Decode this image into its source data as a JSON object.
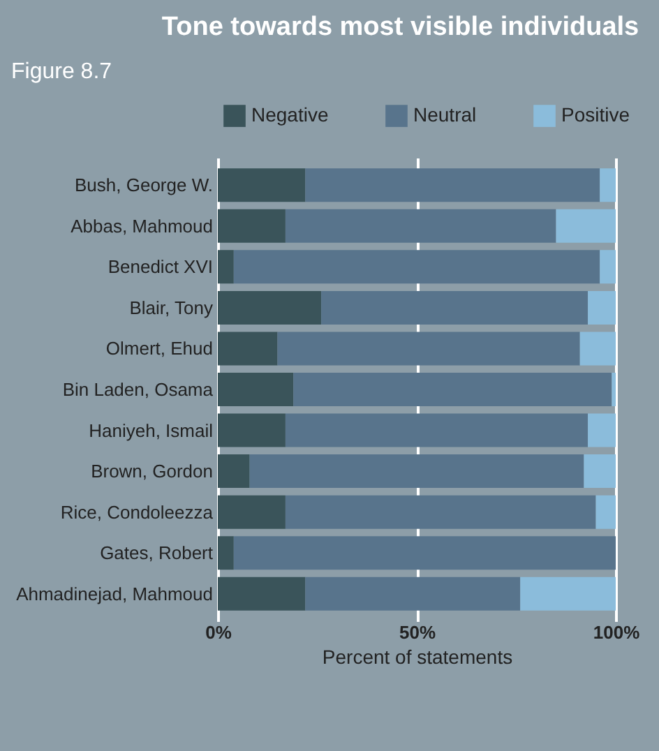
{
  "chart_data": {
    "type": "bar",
    "orientation": "horizontal",
    "stacked": true,
    "title": "Tone towards most visible individuals",
    "annotations": [
      "Figure 8.7"
    ],
    "xlabel": "Percent of statements",
    "categories": [
      "Bush, George W.",
      "Abbas, Mahmoud",
      "Benedict XVI",
      "Blair, Tony",
      "Olmert, Ehud",
      "Bin Laden, Osama",
      "Haniyeh, Ismail",
      "Brown, Gordon",
      "Rice, Condoleezza",
      "Gates, Robert",
      "Ahmadinejad, Mahmoud"
    ],
    "series": [
      {
        "name": "Negative",
        "color": "#3a545a",
        "values": [
          22,
          17,
          4,
          26,
          15,
          19,
          17,
          8,
          17,
          4,
          22
        ]
      },
      {
        "name": "Neutral",
        "color": "#58748c",
        "values": [
          74,
          68,
          92,
          67,
          76,
          80,
          76,
          84,
          78,
          96,
          54
        ]
      },
      {
        "name": "Positive",
        "color": "#8bbcdb",
        "values": [
          4,
          15,
          4,
          7,
          9,
          1,
          7,
          8,
          5,
          0,
          24
        ]
      }
    ],
    "xlim": [
      0,
      100
    ],
    "xticks": [
      {
        "value": 0,
        "label": "0%"
      },
      {
        "value": 50,
        "label": "50%"
      },
      {
        "value": 100,
        "label": "100%"
      }
    ],
    "grid": "x",
    "legend": "top"
  }
}
